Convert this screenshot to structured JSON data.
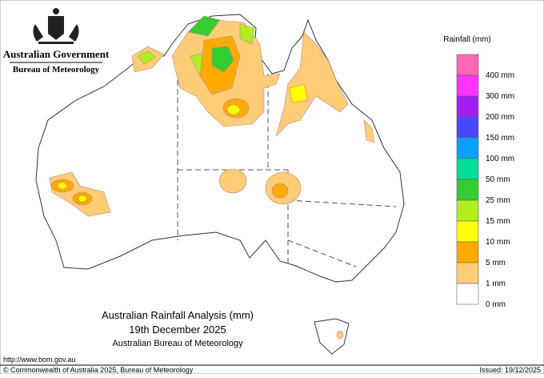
{
  "header": {
    "government": "Australian Government",
    "agency": "Bureau of Meteorology"
  },
  "legend": {
    "title": "Rainfall (mm)",
    "items": [
      {
        "label": "400 mm",
        "color": "#ff66b3"
      },
      {
        "label": "300 mm",
        "color": "#ff33ff"
      },
      {
        "label": "200 mm",
        "color": "#a020f0"
      },
      {
        "label": "150 mm",
        "color": "#4848ff"
      },
      {
        "label": "100 mm",
        "color": "#0aa0ff"
      },
      {
        "label": "50 mm",
        "color": "#00dd99"
      },
      {
        "label": "25 mm",
        "color": "#33cc33"
      },
      {
        "label": "15 mm",
        "color": "#b0ee22"
      },
      {
        "label": "10 mm",
        "color": "#ffff00"
      },
      {
        "label": "5 mm",
        "color": "#ffaa00"
      },
      {
        "label": "1 mm",
        "color": "#ffcc77"
      },
      {
        "label": "0 mm",
        "color": "#ffffff"
      }
    ]
  },
  "map_title": {
    "line1": "Australian Rainfall Analysis (mm)",
    "line2": "19th December 2025",
    "line3": "Australian Bureau of Meteorology"
  },
  "footer": {
    "url": "http://www.bom.gov.au",
    "copyright": "© Commonwealth of Australia 2025, Bureau of Meteorology",
    "issued": "Issued: 19/12/2025"
  }
}
